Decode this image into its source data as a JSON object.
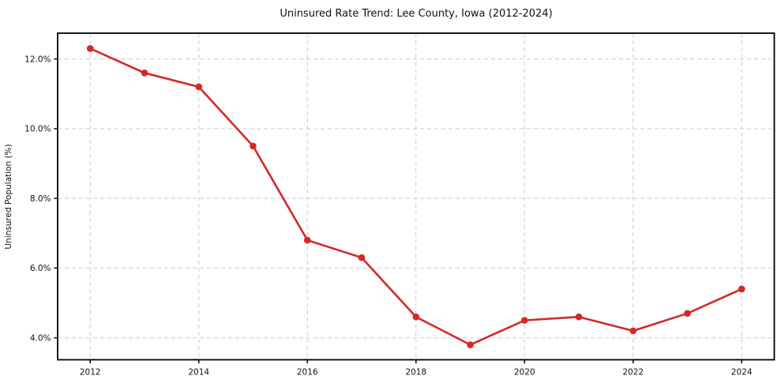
{
  "figure": {
    "background": "#ffffff"
  },
  "chart_data": {
    "type": "line",
    "title": "Uninsured Rate Trend: Lee County, Iowa (2012-2024)",
    "xlabel": "",
    "ylabel": "Uninsured Population (%)",
    "x": [
      2012,
      2013,
      2014,
      2015,
      2016,
      2017,
      2018,
      2019,
      2020,
      2021,
      2022,
      2023,
      2024
    ],
    "values": [
      12.3,
      11.6,
      11.2,
      9.5,
      6.8,
      6.3,
      4.6,
      3.8,
      4.5,
      4.6,
      4.2,
      4.7,
      5.4
    ],
    "unit": "%",
    "x_tick_values": [
      2012,
      2014,
      2016,
      2018,
      2020,
      2022,
      2024
    ],
    "x_tick_labels": [
      "2012",
      "2014",
      "2016",
      "2018",
      "2020",
      "2022",
      "2024"
    ],
    "y_tick_values": [
      4.0,
      6.0,
      8.0,
      10.0,
      12.0
    ],
    "y_tick_labels": [
      "4.0%",
      "6.0%",
      "8.0%",
      "10.0%",
      "12.0%"
    ],
    "xlim": [
      2011.4,
      2024.6
    ],
    "ylim": [
      3.37,
      12.74
    ],
    "grid": true,
    "grid_style": "dashed",
    "legend_position": "none",
    "line_color": "#d62728",
    "marker_color": "#d62728",
    "grid_color": "#cccccc",
    "axis_color": "#000000",
    "text_color": "#111111"
  }
}
